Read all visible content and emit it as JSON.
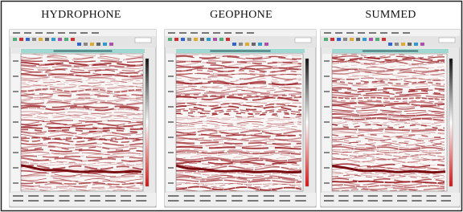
{
  "panels": [
    {
      "title": "HYDROPHONE"
    },
    {
      "title": "GEOPHONE"
    },
    {
      "title": "SUMMED"
    }
  ]
}
